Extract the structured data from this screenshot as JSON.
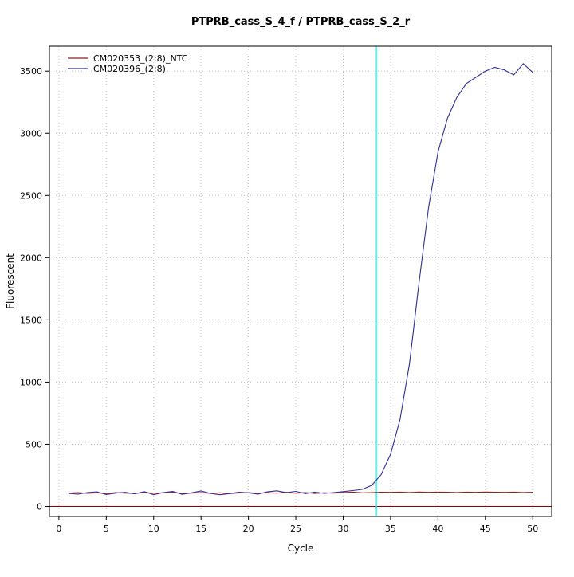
{
  "title": "PTPRB_cass_S_4_f / PTPRB_cass_S_2_r",
  "chart_data": {
    "type": "line",
    "title": "PTPRB_cass_S_4_f / PTPRB_cass_S_2_r",
    "xlabel": "Cycle",
    "ylabel": "Fluorescent",
    "xlim": [
      -1,
      52
    ],
    "ylim": [
      -80,
      3700
    ],
    "x_ticks": [
      0,
      5,
      10,
      15,
      20,
      25,
      30,
      35,
      40,
      45,
      50
    ],
    "y_ticks": [
      0,
      500,
      1000,
      1500,
      2000,
      2500,
      3000,
      3500
    ],
    "grid": true,
    "legend_position": "top-left",
    "threshold_line": {
      "x": 33.5,
      "color": "#00ffff"
    },
    "baseline": {
      "y": 0,
      "color": "#8b0000"
    },
    "x": [
      1,
      2,
      3,
      4,
      5,
      6,
      7,
      8,
      9,
      10,
      11,
      12,
      13,
      14,
      15,
      16,
      17,
      18,
      19,
      20,
      21,
      22,
      23,
      24,
      25,
      26,
      27,
      28,
      29,
      30,
      31,
      32,
      33,
      34,
      35,
      36,
      37,
      38,
      39,
      40,
      41,
      42,
      43,
      44,
      45,
      46,
      47,
      48,
      49,
      50
    ],
    "series": [
      {
        "name": "CM020353_(2:8)_NTC",
        "color": "#8b2323",
        "values": [
          108,
          112,
          106,
          110,
          104,
          112,
          108,
          105,
          113,
          107,
          110,
          115,
          104,
          108,
          112,
          106,
          110,
          104,
          109,
          112,
          106,
          111,
          108,
          114,
          107,
          112,
          105,
          110,
          108,
          112,
          116,
          110,
          112,
          115,
          114,
          116,
          113,
          117,
          114,
          116,
          115,
          113,
          116,
          114,
          117,
          115,
          114,
          116,
          113,
          115
        ]
      },
      {
        "name": "CM020396_(2:8)",
        "color": "#2f2f8f",
        "values": [
          105,
          100,
          112,
          118,
          96,
          108,
          114,
          102,
          120,
          95,
          112,
          122,
          98,
          110,
          125,
          105,
          95,
          104,
          115,
          110,
          100,
          118,
          126,
          112,
          122,
          104,
          116,
          106,
          112,
          120,
          128,
          138,
          170,
          255,
          420,
          700,
          1150,
          1800,
          2400,
          2850,
          3120,
          3290,
          3400,
          3450,
          3500,
          3530,
          3510,
          3470,
          3560,
          3490
        ]
      }
    ]
  }
}
